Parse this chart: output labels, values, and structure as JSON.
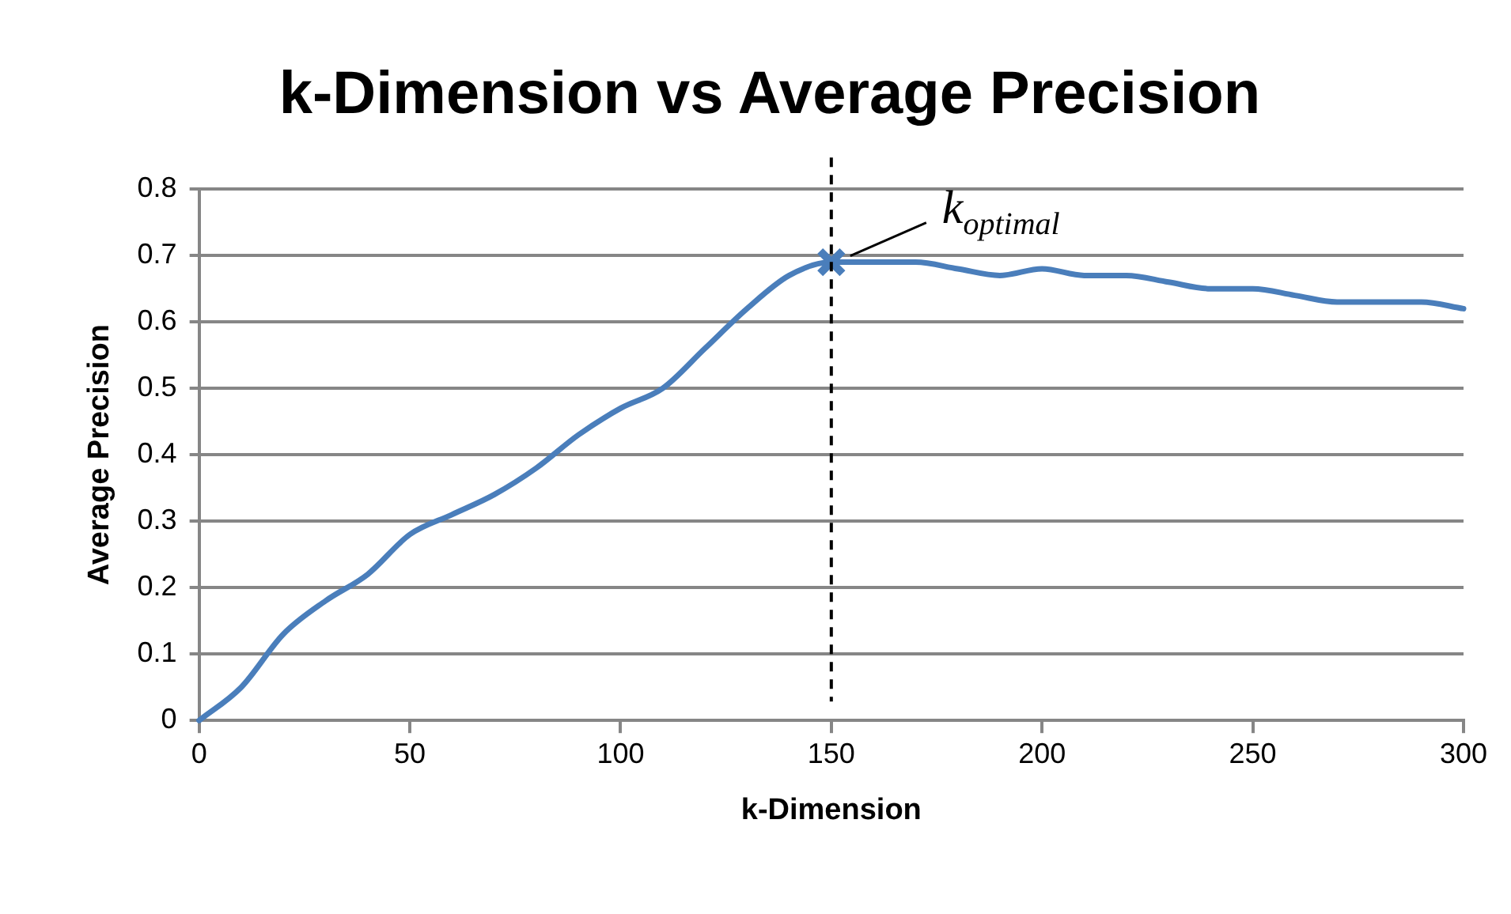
{
  "chart_data": {
    "type": "line",
    "title": "k-Dimension vs Average Precision",
    "xlabel": "k-Dimension",
    "ylabel": "Average Precision",
    "xlim": [
      0,
      300
    ],
    "xticks": [
      0,
      50,
      100,
      150,
      200,
      250,
      300
    ],
    "ylim": [
      0,
      0.8
    ],
    "yticks": [
      0,
      0.1,
      0.2,
      0.3,
      0.4,
      0.5,
      0.6,
      0.7,
      0.8
    ],
    "grid": "y",
    "legend": false,
    "marker": "none",
    "line_style": "solid",
    "series": [
      {
        "type": "line",
        "color": "#4a7ebb",
        "x": [
          0,
          10,
          20,
          30,
          40,
          50,
          60,
          70,
          80,
          90,
          100,
          110,
          120,
          130,
          140,
          150,
          160,
          170,
          180,
          190,
          200,
          210,
          220,
          230,
          240,
          250,
          260,
          270,
          280,
          290,
          300
        ],
        "values": [
          0,
          0.05,
          0.13,
          0.18,
          0.22,
          0.28,
          0.31,
          0.34,
          0.38,
          0.43,
          0.47,
          0.5,
          0.56,
          0.62,
          0.67,
          0.69,
          0.69,
          0.69,
          0.68,
          0.67,
          0.68,
          0.67,
          0.67,
          0.66,
          0.65,
          0.65,
          0.64,
          0.63,
          0.63,
          0.63,
          0.62
        ]
      },
      {
        "type": "scatter",
        "color": "#4a7ebb",
        "marker": "cross",
        "x": [
          150
        ],
        "values": [
          0.69
        ]
      }
    ],
    "ref_lines": [
      {
        "axis": "x",
        "value": 150,
        "color": "#000000",
        "line_style": "dashed"
      }
    ],
    "annotations": [
      {
        "text": "k$_{optimal}$",
        "x": 150,
        "y": 0.69
      }
    ]
  }
}
